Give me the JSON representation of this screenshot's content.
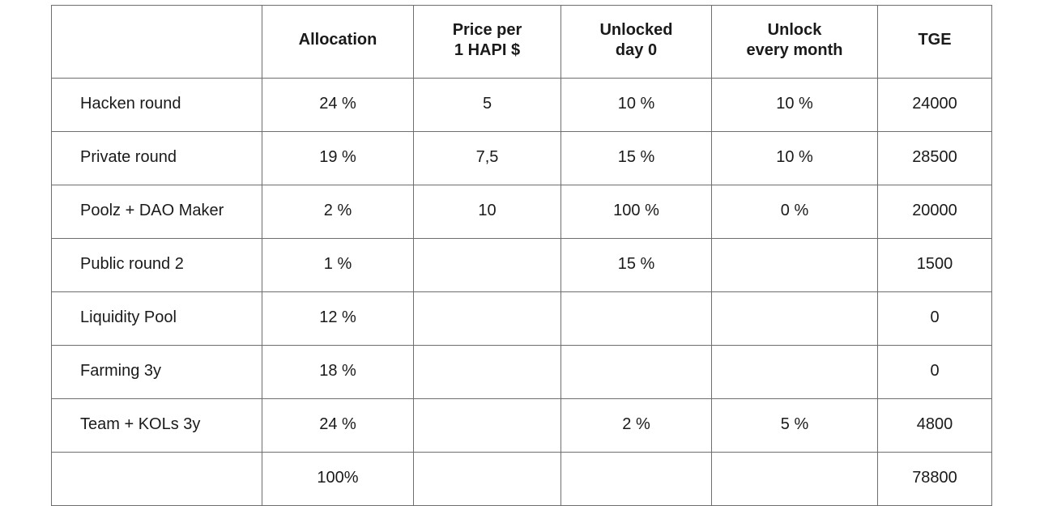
{
  "table": {
    "headers": [
      "",
      "Allocation",
      "Price per\n1 HAPI $",
      "Unlocked\nday 0",
      "Unlock\nevery month",
      "TGE"
    ],
    "rows": [
      {
        "name": "Hacken round",
        "allocation": "24 %",
        "price": "5",
        "unlocked_day0": "10 %",
        "unlock_monthly": "10 %",
        "tge": "24000"
      },
      {
        "name": "Private round",
        "allocation": "19 %",
        "price": "7,5",
        "unlocked_day0": "15 %",
        "unlock_monthly": "10 %",
        "tge": "28500"
      },
      {
        "name": "Poolz + DAO Maker",
        "allocation": "2 %",
        "price": "10",
        "unlocked_day0": "100 %",
        "unlock_monthly": "0 %",
        "tge": "20000"
      },
      {
        "name": "Public round 2",
        "allocation": "1 %",
        "price": "",
        "unlocked_day0": "15 %",
        "unlock_monthly": "",
        "tge": "1500"
      },
      {
        "name": "Liquidity Pool",
        "allocation": "12 %",
        "price": "",
        "unlocked_day0": "",
        "unlock_monthly": "",
        "tge": "0"
      },
      {
        "name": "Farming 3y",
        "allocation": "18 %",
        "price": "",
        "unlocked_day0": "",
        "unlock_monthly": "",
        "tge": "0"
      },
      {
        "name": "Team + KOLs 3y",
        "allocation": "24 %",
        "price": "",
        "unlocked_day0": "2 %",
        "unlock_monthly": "5 %",
        "tge": "4800"
      }
    ],
    "total": {
      "name": "",
      "allocation": "100%",
      "price": "",
      "unlocked_day0": "",
      "unlock_monthly": "",
      "tge": "78800"
    }
  }
}
